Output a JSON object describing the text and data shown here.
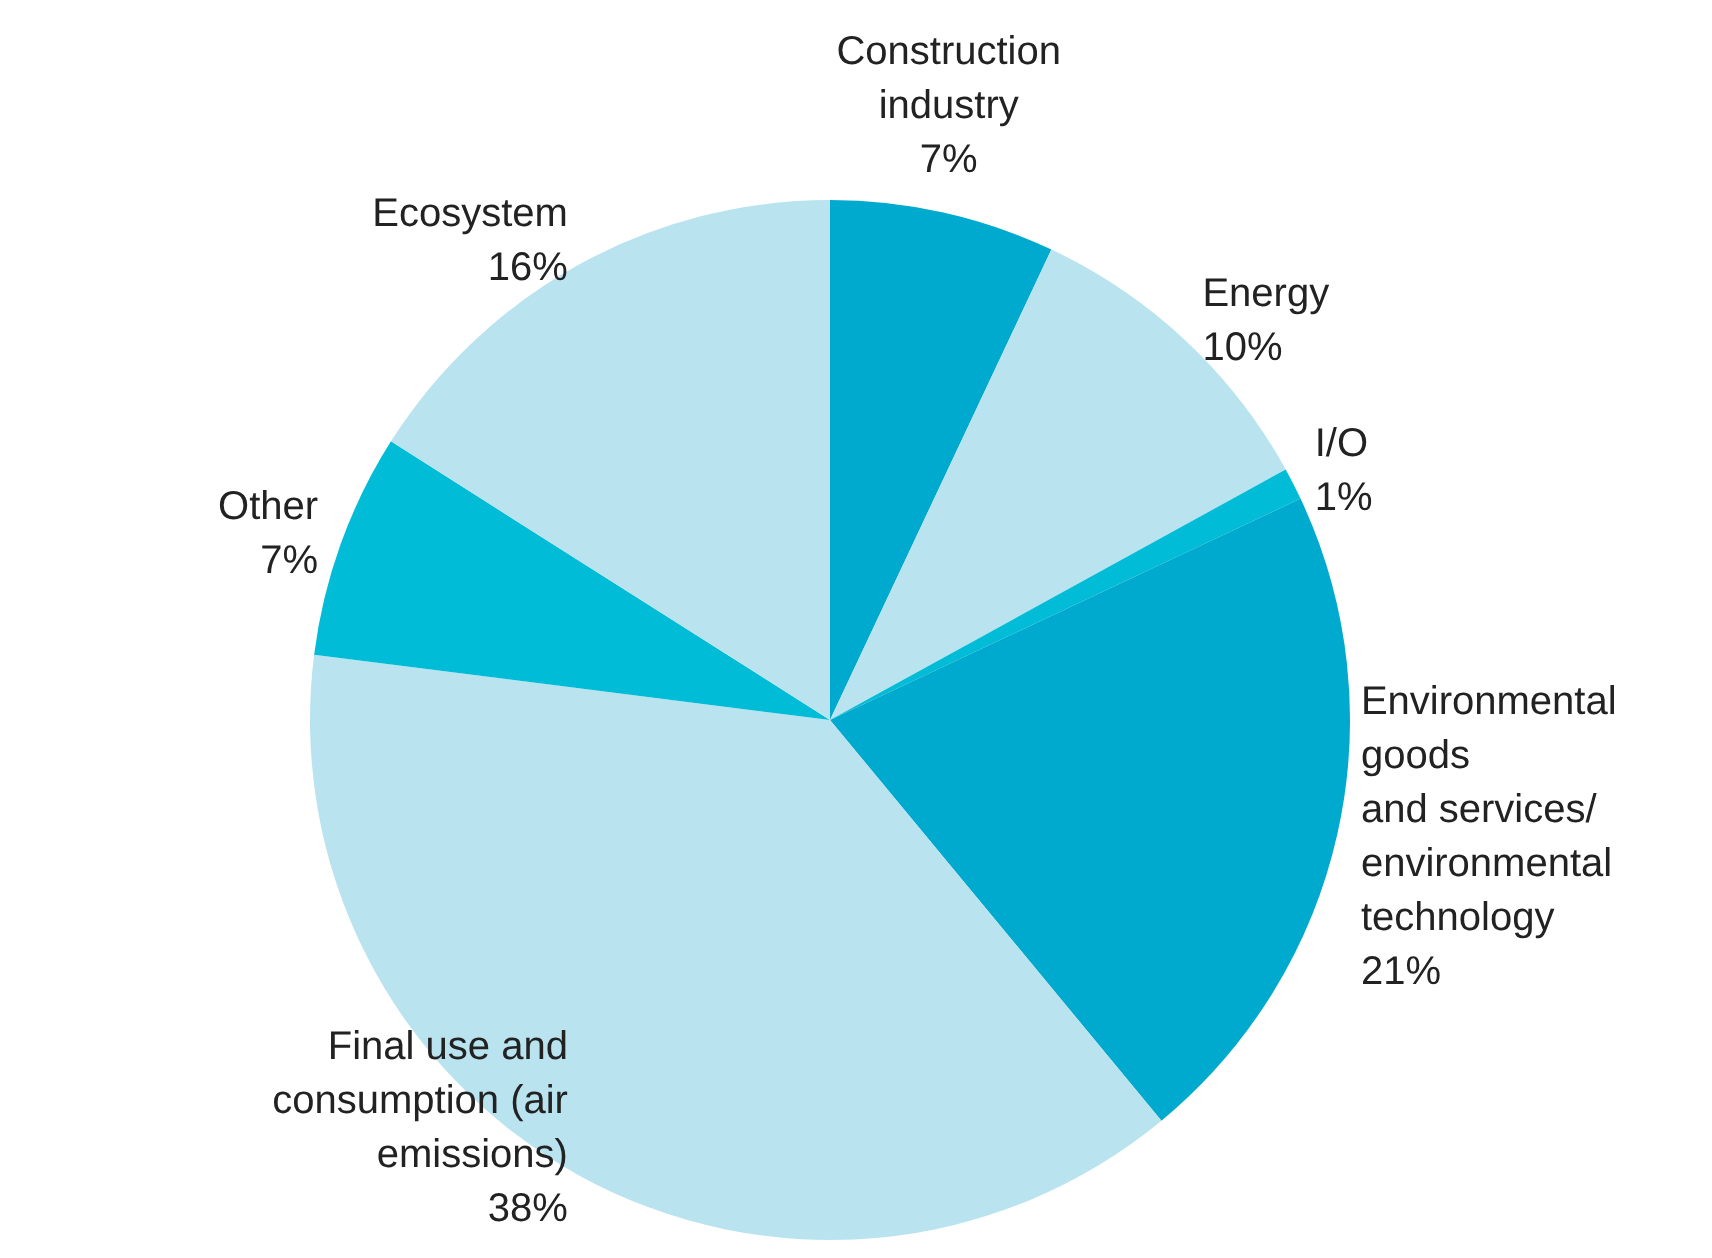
{
  "chart_data": {
    "type": "pie",
    "categories": [
      "Construction\nindustry",
      "Energy",
      "I/O",
      "Environmental\ngoods\nand services/\nenvironmental\ntechnology",
      "Final use and\nconsumption (air\nemissions)",
      "Other",
      "Ecosystem"
    ],
    "values": [
      7,
      10,
      1,
      21,
      38,
      7,
      16
    ],
    "colors": [
      "#00aacf",
      "#b9e3ef",
      "#00bcd6",
      "#00aacf",
      "#b9e3ef",
      "#00bcd6",
      "#b9e3ef"
    ],
    "value_labels": [
      "7%",
      "10%",
      "1%",
      "21%",
      "38%",
      "7%",
      "16%"
    ],
    "legend": false
  }
}
